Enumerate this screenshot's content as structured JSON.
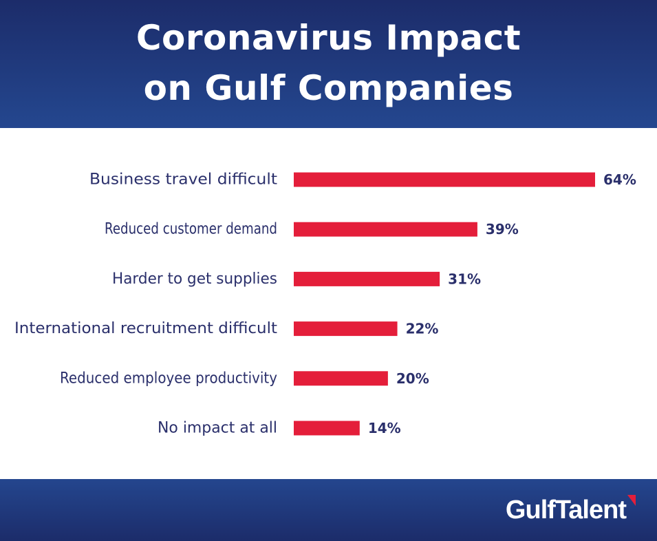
{
  "header": {
    "title_line1": "Coronavirus Impact",
    "title_line2": "on Gulf Companies"
  },
  "footer": {
    "logo_text": "GulfTalent"
  },
  "colors": {
    "bar": "#e41e3a",
    "label": "#2a2f6b",
    "header_bg": "#1f3777",
    "logo_accent": "#e41e3a"
  },
  "chart_data": {
    "type": "bar",
    "orientation": "horizontal",
    "categories": [
      "Business travel difficult",
      "Reduced customer demand",
      "Harder to get supplies",
      "International recruitment difficult",
      "Reduced employee productivity",
      "No impact at all"
    ],
    "values": [
      64,
      39,
      31,
      22,
      20,
      14
    ],
    "value_labels": [
      "64%",
      "39%",
      "31%",
      "22%",
      "20%",
      "14%"
    ],
    "unit": "%",
    "grid": false,
    "legend": "none"
  }
}
